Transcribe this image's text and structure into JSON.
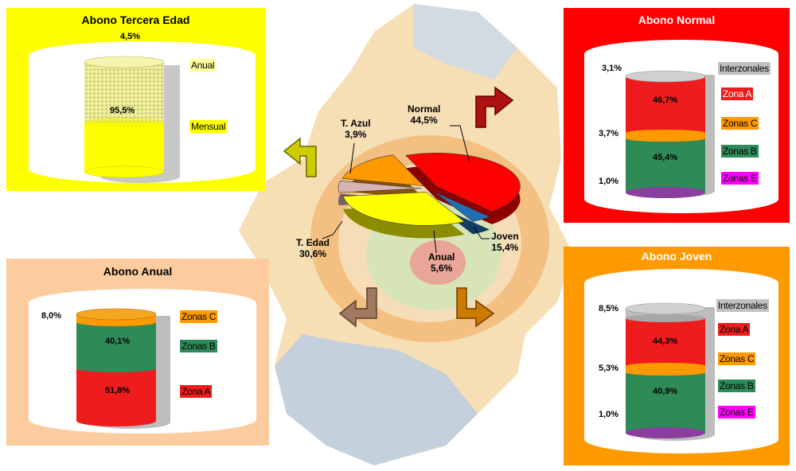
{
  "colors": {
    "normal": "#ff0000",
    "joven": "#ff9900",
    "anual": "#fccc9f",
    "tercera": "#ffff00",
    "zona_a": "#ee1c1c",
    "zona_b": "#2e8b57",
    "zona_c": "#ff9900",
    "zona_e": "#ff00ff",
    "interzonales": "#c0c0c0"
  },
  "main_pie": {
    "labels": [
      {
        "name": "Normal",
        "value": "44,5%"
      },
      {
        "name": "T. Azul",
        "value": "3,9%"
      },
      {
        "name": "T. Edad",
        "value": "30,6%"
      },
      {
        "name": "Anual",
        "value": "5,6%"
      },
      {
        "name": "Joven",
        "value": "15,4%"
      }
    ]
  },
  "panels": {
    "tercera": {
      "title": "Abono Tercera Edad",
      "top_value": "4,5%",
      "mid_value": "95,5%",
      "legend": [
        "Anual",
        "Mensual"
      ]
    },
    "normal": {
      "title": "Abono Normal",
      "values": [
        "3,1%",
        "46,7%",
        "3,7%",
        "45,4%",
        "1,0%"
      ],
      "legend": [
        "Interzonales",
        "Zona A",
        "Zonas C",
        "Zonas B",
        "Zonas E"
      ]
    },
    "anual": {
      "title": "Abono Anual",
      "values": [
        "8,0%",
        "40,1%",
        "51,8%"
      ],
      "legend": [
        "Zonas C",
        "Zonas B",
        "Zona A"
      ]
    },
    "joven": {
      "title": "Abono Joven",
      "values": [
        "8,5%",
        "44,3%",
        "5,3%",
        "40,9%",
        "1,0%"
      ],
      "legend": [
        "Interzonales",
        "Zona A",
        "Zonas C",
        "Zonas B",
        "Zonas E"
      ]
    }
  },
  "chart_data": [
    {
      "type": "pie",
      "categories": [
        "Normal",
        "T. Azul",
        "T. Edad",
        "Anual",
        "Joven"
      ],
      "values": [
        44.5,
        3.9,
        30.6,
        5.6,
        15.4
      ]
    },
    {
      "type": "bar",
      "title": "Abono Tercera Edad",
      "categories": [
        "Anual",
        "Mensual"
      ],
      "values": [
        4.5,
        95.5
      ]
    },
    {
      "type": "bar",
      "title": "Abono Normal",
      "categories": [
        "Interzonales",
        "Zona A",
        "Zonas C",
        "Zonas B",
        "Zonas E"
      ],
      "values": [
        3.1,
        46.7,
        3.7,
        45.4,
        1.0
      ]
    },
    {
      "type": "bar",
      "title": "Abono Anual",
      "categories": [
        "Zonas C",
        "Zonas B",
        "Zona A"
      ],
      "values": [
        8.0,
        40.1,
        51.8
      ]
    },
    {
      "type": "bar",
      "title": "Abono Joven",
      "categories": [
        "Interzonales",
        "Zona A",
        "Zonas C",
        "Zonas B",
        "Zonas E"
      ],
      "values": [
        8.5,
        44.3,
        5.3,
        40.9,
        1.0
      ]
    }
  ]
}
